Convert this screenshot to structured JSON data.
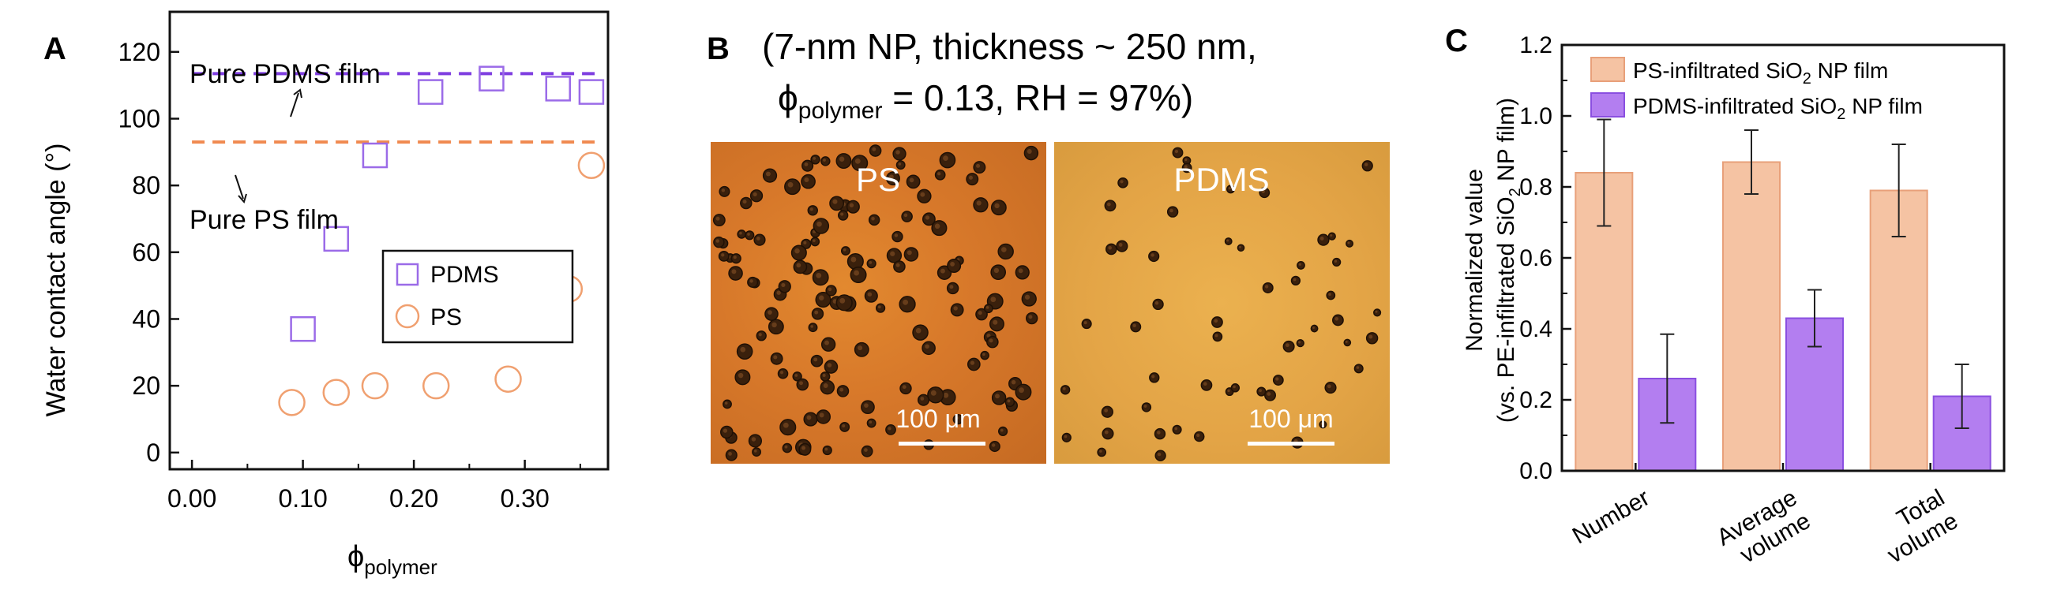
{
  "panel_a": {
    "label": "A",
    "ref_lines": [
      {
        "name": "pdms",
        "label": "Pure PDMS film",
        "y": 113.5,
        "color": "#7f3fe0"
      },
      {
        "name": "ps",
        "label": "Pure PS film",
        "y": 93,
        "color": "#f08a50"
      }
    ],
    "legend": [
      "PDMS",
      "PS"
    ]
  },
  "panel_b": {
    "label": "B",
    "title_line1": "(7-nm NP, thickness ~ 250 nm,",
    "title_line2_symbol": "ϕ",
    "title_line2_sub": "polymer",
    "title_line2_rest": " = 0.13, RH = 97%)",
    "left_label": "PS",
    "right_label": "PDMS",
    "scalebar": "100 μm"
  },
  "chart_data": [
    {
      "type": "scatter",
      "xlabel_symbol": "ϕ",
      "xlabel_sub": "polymer",
      "ylabel": "Water contact angle (°)",
      "xlim": [
        -0.02,
        0.375
      ],
      "ylim": [
        -5,
        132
      ],
      "xticks": [
        "0.00",
        "0.10",
        "0.20",
        "0.30"
      ],
      "xtick_values": [
        0.0,
        0.1,
        0.2,
        0.3
      ],
      "yticks": [
        "0",
        "20",
        "40",
        "60",
        "80",
        "100",
        "120"
      ],
      "ytick_values": [
        0,
        20,
        40,
        60,
        80,
        100,
        120
      ],
      "series": [
        {
          "name": "PDMS",
          "marker": "square",
          "color": "#9b6be8",
          "x": [
            0.1,
            0.13,
            0.165,
            0.215,
            0.27,
            0.33,
            0.36
          ],
          "y": [
            37,
            64,
            89,
            108,
            112,
            109,
            108
          ]
        },
        {
          "name": "PS",
          "marker": "circle",
          "color": "#f0a070",
          "x": [
            0.09,
            0.13,
            0.165,
            0.22,
            0.285,
            0.34,
            0.36
          ],
          "y": [
            15,
            18,
            20,
            20,
            22,
            49,
            86
          ]
        }
      ],
      "legend_placement": "center-right"
    },
    {
      "type": "bar",
      "label": "C",
      "ylabel_line1": "Normalized value",
      "ylabel_line2": "(vs. PE-infiltrated SiO",
      "ylabel_line2_sub": "2",
      "ylabel_line2_end": " NP film)",
      "categories": [
        [
          "Number"
        ],
        [
          "Average",
          "volume"
        ],
        [
          "Total",
          "volume"
        ]
      ],
      "ylim": [
        0,
        1.2
      ],
      "yticks": [
        "0.0",
        "0.2",
        "0.4",
        "0.6",
        "0.8",
        "1.0",
        "1.2"
      ],
      "ytick_values": [
        0,
        0.2,
        0.4,
        0.6,
        0.8,
        1.0,
        1.2
      ],
      "series": [
        {
          "name_pre": "PS-infiltrated SiO",
          "name_sub": "2",
          "name_post": " NP film",
          "fill": "#f5c3a3",
          "stroke": "#e8a07a",
          "values": [
            0.84,
            0.87,
            0.79
          ],
          "errors": [
            0.15,
            0.09,
            0.13
          ]
        },
        {
          "name_pre": "PDMS-infiltrated SiO",
          "name_sub": "2",
          "name_post": " NP film",
          "fill": "#b37ef0",
          "stroke": "#8a4fe0",
          "values": [
            0.26,
            0.43,
            0.21
          ],
          "errors": [
            0.125,
            0.08,
            0.09
          ]
        }
      ],
      "legend_placement": "top-left"
    }
  ]
}
